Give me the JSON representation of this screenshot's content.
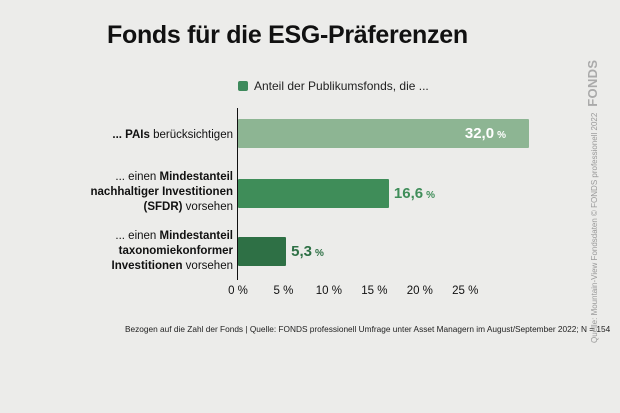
{
  "title": "Fonds für die ESG-Präferenzen",
  "colors": {
    "legend": "#3e8a5c",
    "bar_1": "#8db593",
    "bar_2": "#3f8d59",
    "bar_3": "#2e7045",
    "value_1": "#ffffff",
    "value_2": "#3f8d59",
    "value_3": "#2e7045"
  },
  "chart_data": {
    "type": "bar",
    "orientation": "horizontal",
    "categories": [
      "... PAIs berücksichtigen",
      "... einen Mindestanteil nachhaltiger Investitionen (SFDR) vorsehen",
      "... einen Mindestanteil taxonomiekonformer Investitionen vorsehen"
    ],
    "series": [
      {
        "name": "Anteil der Publikumsfonds, die ...",
        "values": [
          32.0,
          16.6,
          5.3
        ]
      }
    ],
    "value_labels": [
      "32,0",
      "16,6",
      "5,3"
    ],
    "value_unit": "%",
    "xlim": [
      0,
      33
    ],
    "xticks": [
      "0 %",
      "5 %",
      "10 %",
      "15 %",
      "20 %",
      "25 %"
    ],
    "tick_values": [
      0,
      5,
      10,
      15,
      20,
      25
    ],
    "legend": "top"
  },
  "labels": {
    "cat1_a": "... ",
    "cat1_b": "PAIs",
    "cat1_c": " berücksichtigen",
    "cat2_l1": "... einen ",
    "cat2_l1b": "Mindestanteil",
    "cat2_l2": "nachhaltiger Investitionen",
    "cat2_l3a": "(SFDR)",
    "cat2_l3b": " vorsehen",
    "cat3_l1": "... einen ",
    "cat3_l1b": "Mindestanteil",
    "cat3_l2": "taxonomiekonformer",
    "cat3_l3a": "Investitionen",
    "cat3_l3b": " vorsehen"
  },
  "footnote": "Bezogen auf die Zahl der Fonds | Quelle: FONDS professionell Umfrage unter Asset Managern im August/September 2022; N = 154",
  "side_text": "Quelle: Mountain-View Fondsdaten  © FONDS professionell 2022",
  "side_logo": "FONDS"
}
